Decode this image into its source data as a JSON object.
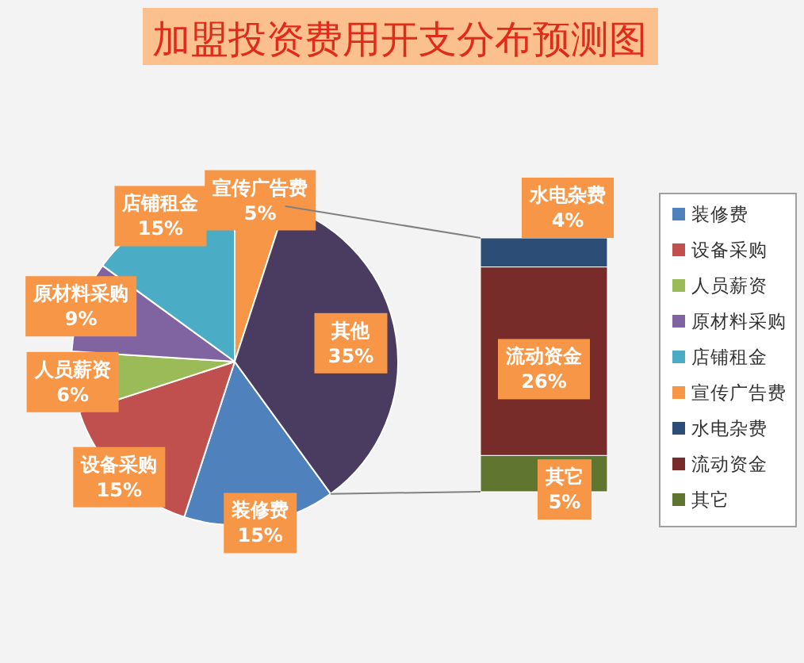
{
  "chart_data": [
    {
      "type": "pie",
      "title": "加盟投资费用开支分布预测图",
      "categories": [
        "装修费",
        "设备采购",
        "人员薪资",
        "原材料采购",
        "店铺租金",
        "宣传广告费",
        "其他"
      ],
      "values": [
        15,
        15,
        6,
        9,
        15,
        5,
        35
      ],
      "value_labels": [
        "15%",
        "15%",
        "6%",
        "9%",
        "15%",
        "5%",
        "35%"
      ],
      "colors": [
        "#4f81bd",
        "#c0504d",
        "#9bbb59",
        "#8064a2",
        "#4bacc6",
        "#f79646",
        "#4a3c60"
      ],
      "legend": "right"
    },
    {
      "type": "bar",
      "stacked": true,
      "categories": [
        null
      ],
      "series": [
        {
          "name": "其它",
          "color": "#5f7530",
          "values": [
            5
          ],
          "value_labels": [
            "5%"
          ]
        },
        {
          "name": "流动资金",
          "color": "#772c2a",
          "values": [
            26
          ],
          "value_labels": [
            "26%"
          ]
        },
        {
          "name": "水电杂费",
          "color": "#2c4d75",
          "values": [
            4
          ],
          "value_labels": [
            "4%"
          ]
        }
      ],
      "legend": "right"
    }
  ]
}
